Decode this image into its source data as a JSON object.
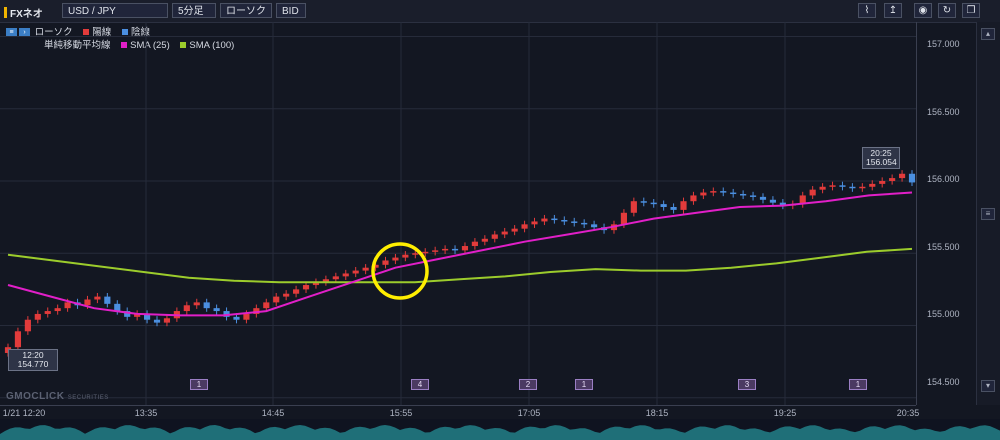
{
  "toolbar": {
    "brand": "FXネオ",
    "symbol": "USD / JPY",
    "interval": "5分足",
    "chart_style": "ローソク",
    "price_side": "BID"
  },
  "legend": {
    "candles_label": "ローソク",
    "up_label": "陽線",
    "down_label": "陰線",
    "ma_group": "単純移動平均線",
    "sma25_label": "SMA (25)",
    "sma100_label": "SMA (100)",
    "colors": {
      "up": "#e23b3b",
      "down": "#4b8fe0",
      "sma25": "#e11fc8",
      "sma100": "#9ccc2c"
    }
  },
  "watermark": {
    "main": "GMOCLICK",
    "sub": "SECURITIES"
  },
  "start_box": {
    "time": "12:20",
    "price": "154.770"
  },
  "last_box": {
    "time": "20:25",
    "price": "156.054"
  },
  "markers": [
    "1",
    "4",
    "2",
    "1",
    "3",
    "1"
  ],
  "annotation": {
    "shape": "circle",
    "color": "#ffee00"
  },
  "chart_data": {
    "type": "candlestick",
    "title": "",
    "y_range": [
      154.45,
      157.1
    ],
    "x_range": [
      "12:20",
      "20:35"
    ],
    "price_ticks": [
      "157.000",
      "156.500",
      "156.000",
      "155.500",
      "155.000",
      "154.500"
    ],
    "time_ticks": [
      "1/21 12:20",
      "13:35",
      "14:45",
      "15:55",
      "17:05",
      "18:15",
      "19:25",
      "20:35"
    ],
    "closes": [
      154.85,
      154.96,
      155.04,
      155.08,
      155.1,
      155.12,
      155.16,
      155.14,
      155.18,
      155.2,
      155.15,
      155.1,
      155.06,
      155.08,
      155.04,
      155.02,
      155.05,
      155.1,
      155.14,
      155.16,
      155.12,
      155.1,
      155.06,
      155.04,
      155.08,
      155.12,
      155.16,
      155.2,
      155.22,
      155.25,
      155.28,
      155.3,
      155.32,
      155.34,
      155.36,
      155.38,
      155.4,
      155.42,
      155.45,
      155.47,
      155.49,
      155.5,
      155.51,
      155.52,
      155.53,
      155.52,
      155.55,
      155.58,
      155.6,
      155.63,
      155.65,
      155.67,
      155.7,
      155.72,
      155.74,
      155.73,
      155.72,
      155.71,
      155.7,
      155.68,
      155.66,
      155.7,
      155.78,
      155.86,
      155.85,
      155.84,
      155.82,
      155.8,
      155.86,
      155.9,
      155.92,
      155.93,
      155.92,
      155.91,
      155.9,
      155.89,
      155.87,
      155.85,
      155.83,
      155.84,
      155.9,
      155.94,
      155.96,
      155.97,
      155.96,
      155.95,
      155.96,
      155.98,
      156.0,
      156.02,
      156.05,
      155.99
    ],
    "sma25": [
      155.28,
      155.2,
      155.12,
      155.08,
      155.07,
      155.07,
      155.1,
      155.2,
      155.3,
      155.4,
      155.46,
      155.52,
      155.58,
      155.63,
      155.68,
      155.74,
      155.78,
      155.82,
      155.83,
      155.86,
      155.9,
      155.92
    ],
    "sma100": [
      155.49,
      155.45,
      155.41,
      155.37,
      155.33,
      155.31,
      155.3,
      155.3,
      155.3,
      155.3,
      155.32,
      155.34,
      155.37,
      155.39,
      155.38,
      155.38,
      155.4,
      155.43,
      155.47,
      155.51,
      155.53
    ]
  }
}
